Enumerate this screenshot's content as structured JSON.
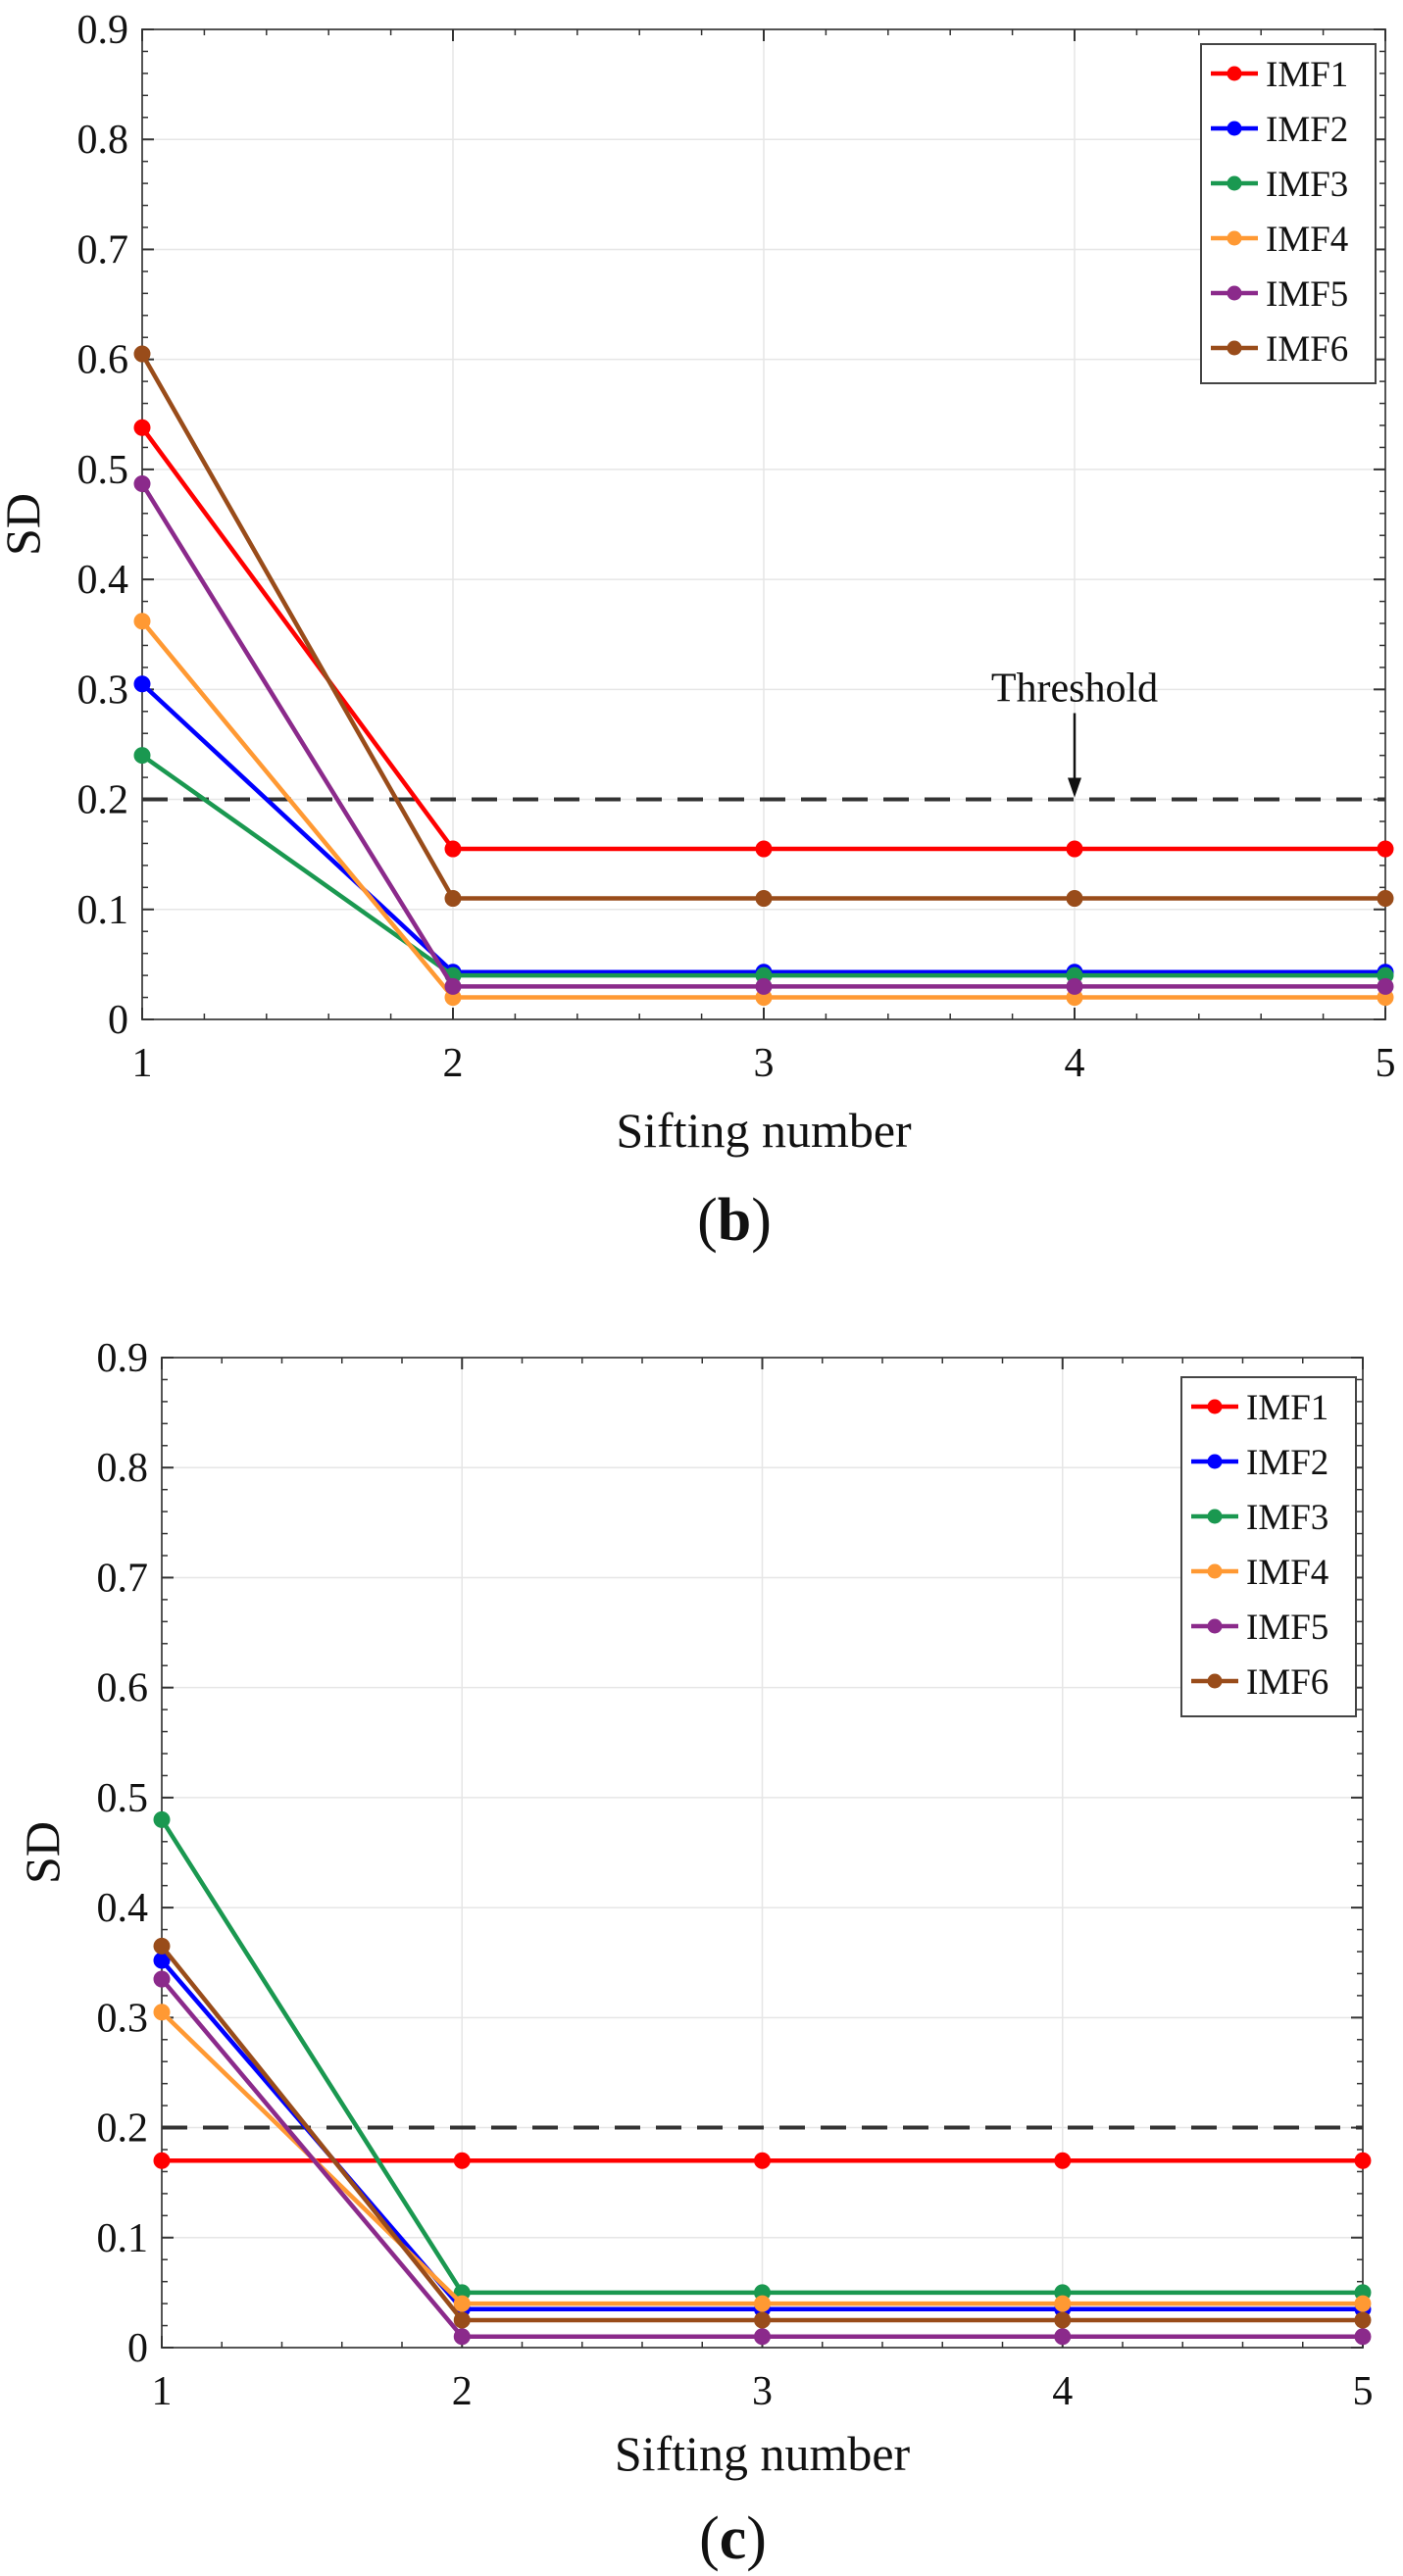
{
  "chart_data": [
    {
      "type": "line",
      "panel_label": "b",
      "xlabel": "Sifting number",
      "ylabel": "SD",
      "x": [
        1,
        2,
        3,
        4,
        5
      ],
      "xlim": [
        1,
        5
      ],
      "ylim": [
        0,
        0.9
      ],
      "xticks": [
        "1",
        "2",
        "3",
        "4",
        "5"
      ],
      "yticks": [
        "0",
        "0.1",
        "0.2",
        "0.3",
        "0.4",
        "0.5",
        "0.6",
        "0.7",
        "0.8",
        "0.9"
      ],
      "grid": true,
      "legend_position": "top-right",
      "threshold": {
        "value": 0.2,
        "label": "Threshold",
        "annotate_x": 4
      },
      "series": [
        {
          "name": "IMF1",
          "color": "#ff0000",
          "values": [
            0.538,
            0.155,
            0.155,
            0.155,
            0.155
          ]
        },
        {
          "name": "IMF2",
          "color": "#0000ff",
          "values": [
            0.305,
            0.043,
            0.043,
            0.043,
            0.043
          ]
        },
        {
          "name": "IMF3",
          "color": "#1a9850",
          "values": [
            0.24,
            0.04,
            0.04,
            0.04,
            0.04
          ]
        },
        {
          "name": "IMF4",
          "color": "#ff9933",
          "values": [
            0.362,
            0.02,
            0.02,
            0.02,
            0.02
          ]
        },
        {
          "name": "IMF5",
          "color": "#8b2a8b",
          "values": [
            0.487,
            0.03,
            0.03,
            0.03,
            0.03
          ]
        },
        {
          "name": "IMF6",
          "color": "#994c1a",
          "values": [
            0.605,
            0.11,
            0.11,
            0.11,
            0.11
          ]
        }
      ]
    },
    {
      "type": "line",
      "panel_label": "c",
      "xlabel": "Sifting number",
      "ylabel": "SD",
      "x": [
        1,
        2,
        3,
        4,
        5
      ],
      "xlim": [
        1,
        5
      ],
      "ylim": [
        0,
        0.9
      ],
      "xticks": [
        "1",
        "2",
        "3",
        "4",
        "5"
      ],
      "yticks": [
        "0",
        "0.1",
        "0.2",
        "0.3",
        "0.4",
        "0.5",
        "0.6",
        "0.7",
        "0.8",
        "0.9"
      ],
      "grid": true,
      "legend_position": "top-right",
      "threshold": {
        "value": 0.2
      },
      "series": [
        {
          "name": "IMF1",
          "color": "#ff0000",
          "values": [
            0.17,
            0.17,
            0.17,
            0.17,
            0.17
          ]
        },
        {
          "name": "IMF2",
          "color": "#0000ff",
          "values": [
            0.352,
            0.035,
            0.035,
            0.035,
            0.035
          ]
        },
        {
          "name": "IMF3",
          "color": "#1a9850",
          "values": [
            0.48,
            0.05,
            0.05,
            0.05,
            0.05
          ]
        },
        {
          "name": "IMF4",
          "color": "#ff9933",
          "values": [
            0.305,
            0.04,
            0.04,
            0.04,
            0.04
          ]
        },
        {
          "name": "IMF5",
          "color": "#8b2a8b",
          "values": [
            0.335,
            0.01,
            0.01,
            0.01,
            0.01
          ]
        },
        {
          "name": "IMF6",
          "color": "#994c1a",
          "values": [
            0.365,
            0.025,
            0.025,
            0.025,
            0.025
          ]
        }
      ]
    }
  ]
}
